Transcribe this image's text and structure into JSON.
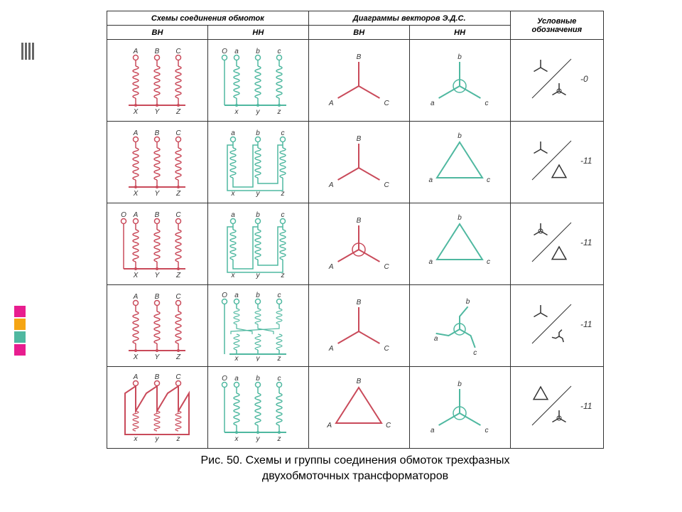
{
  "colors": {
    "hv": "#c94a5a",
    "lv": "#4fb8a0",
    "ink": "#333333",
    "bg": "#ffffff"
  },
  "header": {
    "col1": "Схемы соединения обмоток",
    "col2": "Диаграммы векторов Э.Д.С.",
    "col3": "Условные обозначения",
    "sub_hv": "ВН",
    "sub_lv": "НН"
  },
  "labels": {
    "A": "A",
    "B": "B",
    "C": "C",
    "a": "a",
    "b": "b",
    "c": "c",
    "X": "X",
    "Y": "Y",
    "Z": "Z",
    "x": "x",
    "y": "y",
    "z": "z",
    "O": "O"
  },
  "rows": [
    {
      "hv_has_neutral": false,
      "lv_has_neutral": true,
      "lv_type": "wye",
      "hv_vec": "wye",
      "lv_vec": "wye",
      "sym_top": "wye",
      "sym_bot": "wye-n",
      "group": "-0"
    },
    {
      "hv_has_neutral": false,
      "lv_has_neutral": false,
      "lv_type": "delta",
      "hv_vec": "wye",
      "lv_vec": "triangle",
      "sym_top": "wye",
      "sym_bot": "delta",
      "group": "-11"
    },
    {
      "hv_has_neutral": true,
      "lv_has_neutral": false,
      "lv_type": "delta",
      "hv_vec": "wye-n",
      "lv_vec": "triangle",
      "sym_top": "wye-n",
      "sym_bot": "delta",
      "group": "-11"
    },
    {
      "hv_has_neutral": false,
      "lv_has_neutral": true,
      "lv_type": "zigzag",
      "hv_vec": "wye",
      "lv_vec": "zigzag",
      "sym_top": "wye",
      "sym_bot": "zigzag",
      "group": "-11"
    },
    {
      "hv_has_neutral": false,
      "lv_has_neutral": true,
      "lv_type": "wye",
      "hv_vec": "delta",
      "lv_vec": "wye-n",
      "hv_scheme": "delta",
      "sym_top": "delta",
      "sym_bot": "wye-n",
      "group": "-11"
    }
  ],
  "caption_l1": "Рис. 50. Схемы и группы соединения обмоток трехфазных",
  "caption_l2": "двухобмоточных трансформаторов",
  "sidebar_marks": {
    "top_stripes": [
      "#666",
      "#666",
      "#666",
      "#666"
    ],
    "bottom_blocks": [
      "#e81d8f",
      "#f5a514",
      "#4fb8a0",
      "#e81d8f"
    ]
  }
}
